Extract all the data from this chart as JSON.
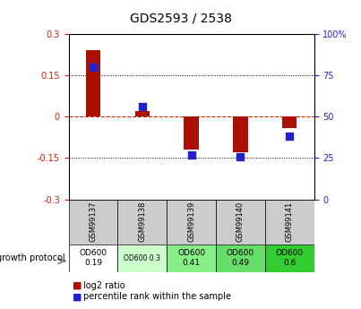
{
  "title": "GDS2593 / 2538",
  "samples": [
    "GSM99137",
    "GSM99138",
    "GSM99139",
    "GSM99140",
    "GSM99141"
  ],
  "log2_ratio": [
    0.24,
    0.02,
    -0.12,
    -0.13,
    -0.04
  ],
  "percentile_rank": [
    80,
    56,
    27,
    26,
    38
  ],
  "ylim_left": [
    -0.3,
    0.3
  ],
  "ylim_right": [
    0,
    100
  ],
  "yticks_left": [
    -0.3,
    -0.15,
    0.0,
    0.15,
    0.3
  ],
  "yticks_right": [
    0,
    25,
    50,
    75,
    100
  ],
  "bar_color": "#aa1100",
  "dot_color": "#2222cc",
  "hline_color": "#cc2200",
  "protocol_labels": [
    "OD600\n0.19",
    "OD600 0.3",
    "OD600\n0.41",
    "OD600\n0.49",
    "OD600\n0.6"
  ],
  "protocol_bg": [
    "#ffffff",
    "#ccffcc",
    "#88ee88",
    "#66dd66",
    "#33cc33"
  ],
  "sample_bg": "#cccccc",
  "legend_red": "log2 ratio",
  "legend_blue": "percentile rank within the sample"
}
